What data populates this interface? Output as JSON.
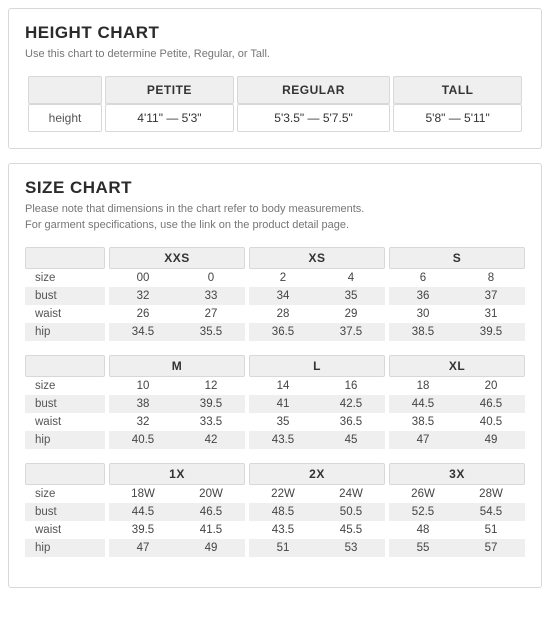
{
  "height_chart": {
    "title": "HEIGHT CHART",
    "subtitle": "Use this chart to determine Petite, Regular, or Tall.",
    "row_label": "height",
    "columns": [
      {
        "label": "PETITE",
        "range": "4'11\" — 5'3\""
      },
      {
        "label": "REGULAR",
        "range": "5'3.5\" — 5'7.5\""
      },
      {
        "label": "TALL",
        "range": "5'8\" — 5'11\""
      }
    ]
  },
  "size_chart": {
    "title": "SIZE CHART",
    "subtitle_line1": "Please note that dimensions in the chart refer to body measurements.",
    "subtitle_line2": "For garment specifications, use the link on the product detail page.",
    "row_labels": [
      "size",
      "bust",
      "waist",
      "hip"
    ],
    "groups": [
      {
        "cols": [
          {
            "label": "XXS",
            "size": [
              "00",
              "0"
            ],
            "bust": [
              "32",
              "33"
            ],
            "waist": [
              "26",
              "27"
            ],
            "hip": [
              "34.5",
              "35.5"
            ]
          },
          {
            "label": "XS",
            "size": [
              "2",
              "4"
            ],
            "bust": [
              "34",
              "35"
            ],
            "waist": [
              "28",
              "29"
            ],
            "hip": [
              "36.5",
              "37.5"
            ]
          },
          {
            "label": "S",
            "size": [
              "6",
              "8"
            ],
            "bust": [
              "36",
              "37"
            ],
            "waist": [
              "30",
              "31"
            ],
            "hip": [
              "38.5",
              "39.5"
            ]
          }
        ]
      },
      {
        "cols": [
          {
            "label": "M",
            "size": [
              "10",
              "12"
            ],
            "bust": [
              "38",
              "39.5"
            ],
            "waist": [
              "32",
              "33.5"
            ],
            "hip": [
              "40.5",
              "42"
            ]
          },
          {
            "label": "L",
            "size": [
              "14",
              "16"
            ],
            "bust": [
              "41",
              "42.5"
            ],
            "waist": [
              "35",
              "36.5"
            ],
            "hip": [
              "43.5",
              "45"
            ]
          },
          {
            "label": "XL",
            "size": [
              "18",
              "20"
            ],
            "bust": [
              "44.5",
              "46.5"
            ],
            "waist": [
              "38.5",
              "40.5"
            ],
            "hip": [
              "47",
              "49"
            ]
          }
        ]
      },
      {
        "cols": [
          {
            "label": "1X",
            "size": [
              "18W",
              "20W"
            ],
            "bust": [
              "44.5",
              "46.5"
            ],
            "waist": [
              "39.5",
              "41.5"
            ],
            "hip": [
              "47",
              "49"
            ]
          },
          {
            "label": "2X",
            "size": [
              "22W",
              "24W"
            ],
            "bust": [
              "48.5",
              "50.5"
            ],
            "waist": [
              "43.5",
              "45.5"
            ],
            "hip": [
              "51",
              "53"
            ]
          },
          {
            "label": "3X",
            "size": [
              "26W",
              "28W"
            ],
            "bust": [
              "52.5",
              "54.5"
            ],
            "waist": [
              "48",
              "51"
            ],
            "hip": [
              "55",
              "57"
            ]
          }
        ]
      }
    ]
  },
  "style": {
    "border_color": "#d8d8d8",
    "header_bg": "#efefef",
    "text_color": "#333333",
    "muted_text": "#767676"
  }
}
